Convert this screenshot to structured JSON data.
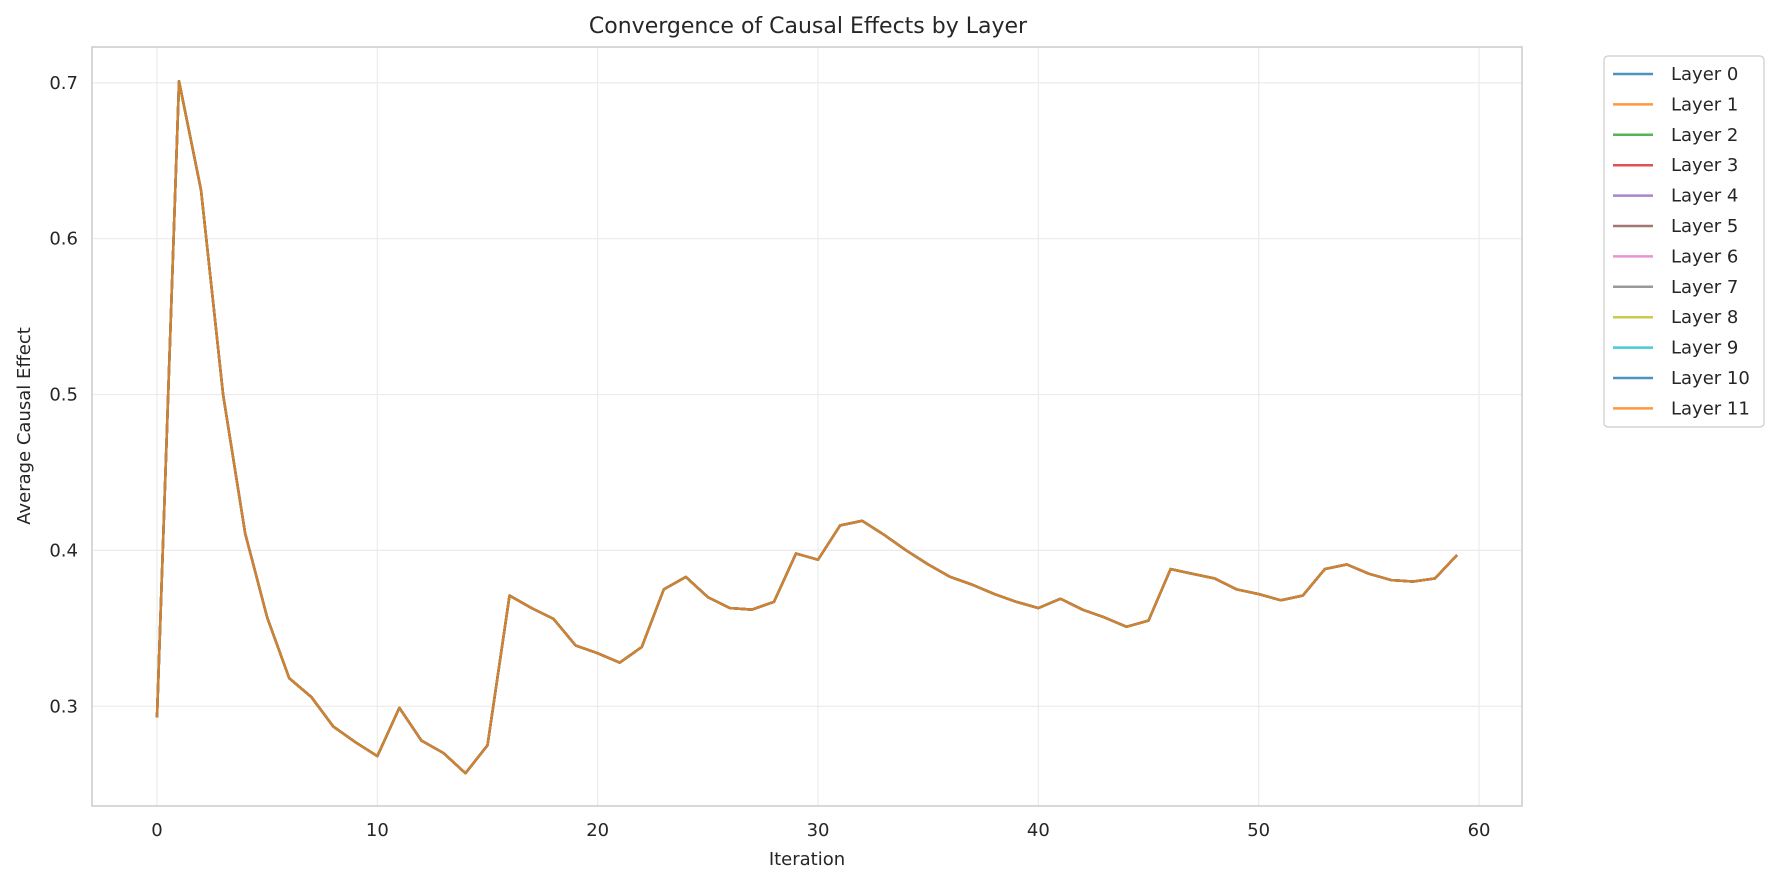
{
  "chart_data": {
    "type": "line",
    "title": "Convergence of Causal Effects by Layer",
    "xlabel": "Iteration",
    "ylabel": "Average Causal Effect",
    "xlim": [
      -2.95,
      61.95
    ],
    "ylim": [
      0.236,
      0.723
    ],
    "xticks": [
      0,
      10,
      20,
      30,
      40,
      50,
      60
    ],
    "yticks": [
      0.3,
      0.4,
      0.5,
      0.6,
      0.7
    ],
    "grid": true,
    "legend_position": "outside-top-right",
    "x": [
      0,
      1,
      2,
      3,
      4,
      5,
      6,
      7,
      8,
      9,
      10,
      11,
      12,
      13,
      14,
      15,
      16,
      17,
      18,
      19,
      20,
      21,
      22,
      23,
      24,
      25,
      26,
      27,
      28,
      29,
      30,
      31,
      32,
      33,
      34,
      35,
      36,
      37,
      38,
      39,
      40,
      41,
      42,
      43,
      44,
      45,
      46,
      47,
      48,
      49,
      50,
      51,
      52,
      53,
      54,
      55,
      56,
      57,
      58,
      59
    ],
    "series": [
      {
        "name": "Layer 0",
        "color": "#1f77b4"
      },
      {
        "name": "Layer 1",
        "color": "#ff7f0e"
      },
      {
        "name": "Layer 2",
        "color": "#2ca02c"
      },
      {
        "name": "Layer 3",
        "color": "#d62728"
      },
      {
        "name": "Layer 4",
        "color": "#9467bd"
      },
      {
        "name": "Layer 5",
        "color": "#8c564b"
      },
      {
        "name": "Layer 6",
        "color": "#e377c2"
      },
      {
        "name": "Layer 7",
        "color": "#7f7f7f"
      },
      {
        "name": "Layer 8",
        "color": "#bcbd22"
      },
      {
        "name": "Layer 9",
        "color": "#17becf"
      },
      {
        "name": "Layer 10",
        "color": "#1f77b4"
      },
      {
        "name": "Layer 11",
        "color": "#ff7f0e"
      }
    ],
    "values": [
      0.293,
      0.701,
      0.631,
      0.5,
      0.411,
      0.357,
      0.318,
      0.306,
      0.287,
      0.277,
      0.268,
      0.299,
      0.278,
      0.27,
      0.257,
      0.275,
      0.371,
      0.363,
      0.356,
      0.339,
      0.334,
      0.328,
      0.338,
      0.375,
      0.383,
      0.37,
      0.363,
      0.362,
      0.367,
      0.398,
      0.394,
      0.416,
      0.419,
      0.41,
      0.4,
      0.391,
      0.383,
      0.378,
      0.372,
      0.367,
      0.363,
      0.369,
      0.362,
      0.357,
      0.351,
      0.355,
      0.388,
      0.385,
      0.382,
      0.375,
      0.372,
      0.368,
      0.371,
      0.388,
      0.391,
      0.385,
      0.381,
      0.38,
      0.382,
      0.397
    ],
    "note_values": "all twelve layer series overlap; values apply to every series"
  }
}
